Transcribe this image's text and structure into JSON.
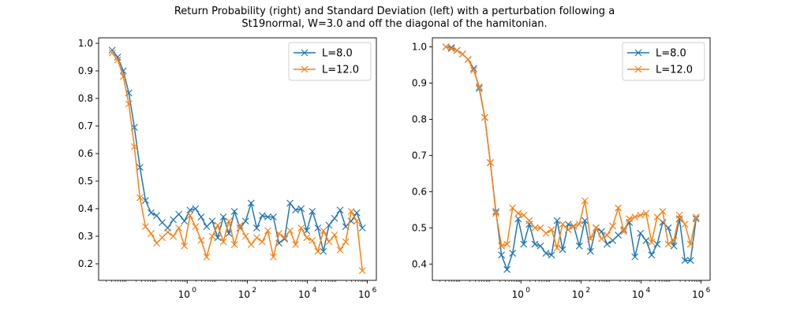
{
  "figure": {
    "title_line1": "Return Probability (right) and Standard Deviation (left) with a perturbation following a",
    "title_line2": "St19normal, W=3.0 and off the diagonal of the hamitonian.",
    "colors": {
      "L8": "#1f77b4",
      "L12": "#ff7f0e"
    }
  },
  "chart_data": [
    {
      "type": "line",
      "panel": "left",
      "title": "",
      "xlabel": "",
      "ylabel": "",
      "xscale": "log",
      "xlim_exp": [
        -2.95,
        6.3
      ],
      "ylim": [
        0.14,
        1.02
      ],
      "yticks": [
        0.2,
        0.3,
        0.4,
        0.5,
        0.6,
        0.7,
        0.8,
        0.9,
        1.0
      ],
      "ytick_labels": [
        "0.2",
        "0.3",
        "0.4",
        "0.5",
        "0.6",
        "0.7",
        "0.8",
        "0.9",
        "1.0"
      ],
      "xtick_exps": [
        0,
        2,
        4,
        6
      ],
      "legend_position": "top-right",
      "marker": "x",
      "x_log10": [
        -2.5,
        -2.315,
        -2.13,
        -1.944,
        -1.759,
        -1.574,
        -1.389,
        -1.204,
        -1.019,
        -0.833,
        -0.648,
        -0.463,
        -0.278,
        -0.093,
        0.093,
        0.278,
        0.463,
        0.648,
        0.833,
        1.019,
        1.204,
        1.389,
        1.574,
        1.759,
        1.944,
        2.13,
        2.315,
        2.5,
        2.685,
        2.87,
        3.056,
        3.241,
        3.426,
        3.611,
        3.796,
        3.981,
        4.167,
        4.352,
        4.537,
        4.722,
        4.907,
        5.093,
        5.278,
        5.463,
        5.648,
        5.833
      ],
      "series": [
        {
          "name": "L=8.0",
          "values": [
            0.975,
            0.95,
            0.9,
            0.82,
            0.695,
            0.55,
            0.43,
            0.385,
            0.375,
            0.35,
            0.33,
            0.36,
            0.38,
            0.355,
            0.395,
            0.4,
            0.37,
            0.335,
            0.355,
            0.295,
            0.37,
            0.31,
            0.39,
            0.33,
            0.355,
            0.42,
            0.33,
            0.375,
            0.37,
            0.37,
            0.275,
            0.29,
            0.42,
            0.395,
            0.4,
            0.32,
            0.39,
            0.33,
            0.245,
            0.34,
            0.365,
            0.395,
            0.335,
            0.355,
            0.385,
            0.33
          ]
        },
        {
          "name": "L=12.0",
          "values": [
            0.965,
            0.94,
            0.88,
            0.78,
            0.625,
            0.44,
            0.335,
            0.31,
            0.275,
            0.295,
            0.315,
            0.3,
            0.33,
            0.265,
            0.375,
            0.335,
            0.285,
            0.225,
            0.3,
            0.34,
            0.28,
            0.355,
            0.27,
            0.34,
            0.3,
            0.27,
            0.295,
            0.28,
            0.32,
            0.225,
            0.31,
            0.295,
            0.32,
            0.27,
            0.33,
            0.295,
            0.285,
            0.245,
            0.32,
            0.28,
            0.305,
            0.25,
            0.28,
            0.39,
            0.355,
            0.175
          ]
        }
      ]
    },
    {
      "type": "line",
      "panel": "right",
      "title": "",
      "xlabel": "",
      "ylabel": "",
      "xscale": "log",
      "xlim_exp": [
        -2.95,
        6.3
      ],
      "ylim": [
        0.355,
        1.025
      ],
      "yticks": [
        0.4,
        0.5,
        0.6,
        0.7,
        0.8,
        0.9,
        1.0
      ],
      "ytick_labels": [
        "0.4",
        "0.5",
        "0.6",
        "0.7",
        "0.8",
        "0.9",
        "1.0"
      ],
      "xtick_exps": [
        0,
        2,
        4,
        6
      ],
      "legend_position": "top-right",
      "marker": "x",
      "x_log10": [
        -2.5,
        -2.315,
        -2.13,
        -1.944,
        -1.759,
        -1.574,
        -1.389,
        -1.204,
        -1.019,
        -0.833,
        -0.648,
        -0.463,
        -0.278,
        -0.093,
        0.093,
        0.278,
        0.463,
        0.648,
        0.833,
        1.019,
        1.204,
        1.389,
        1.574,
        1.759,
        1.944,
        2.13,
        2.315,
        2.5,
        2.685,
        2.87,
        3.056,
        3.241,
        3.426,
        3.611,
        3.796,
        3.981,
        4.167,
        4.352,
        4.537,
        4.722,
        4.907,
        5.093,
        5.278,
        5.463,
        5.648,
        5.833
      ],
      "series": [
        {
          "name": "L=8.0",
          "values": [
            1.0,
            0.998,
            0.99,
            0.98,
            0.965,
            0.94,
            0.885,
            0.805,
            0.68,
            0.545,
            0.425,
            0.385,
            0.43,
            0.525,
            0.455,
            0.51,
            0.455,
            0.45,
            0.43,
            0.425,
            0.52,
            0.44,
            0.51,
            0.505,
            0.45,
            0.52,
            0.435,
            0.5,
            0.49,
            0.455,
            0.465,
            0.48,
            0.495,
            0.515,
            0.42,
            0.485,
            0.465,
            0.425,
            0.455,
            0.515,
            0.5,
            0.45,
            0.525,
            0.41,
            0.41,
            0.525
          ]
        },
        {
          "name": "L=12.0",
          "values": [
            1.0,
            0.995,
            0.99,
            0.98,
            0.965,
            0.935,
            0.89,
            0.805,
            0.68,
            0.54,
            0.45,
            0.455,
            0.555,
            0.54,
            0.535,
            0.52,
            0.5,
            0.5,
            0.485,
            0.495,
            0.445,
            0.51,
            0.495,
            0.505,
            0.51,
            0.575,
            0.47,
            0.5,
            0.47,
            0.48,
            0.505,
            0.555,
            0.49,
            0.525,
            0.53,
            0.535,
            0.54,
            0.46,
            0.53,
            0.545,
            0.455,
            0.465,
            0.535,
            0.51,
            0.455,
            0.53
          ]
        }
      ]
    }
  ]
}
